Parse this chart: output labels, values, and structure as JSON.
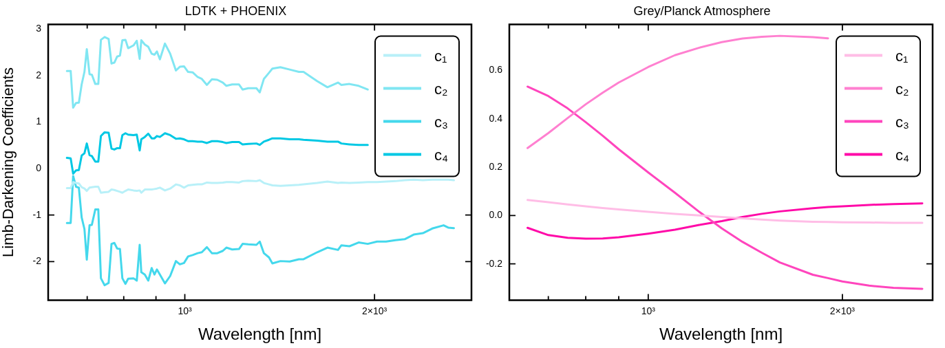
{
  "chart_data": [
    {
      "type": "line",
      "title": "LDTK + PHOENIX",
      "xlabel": "Wavelength [nm]",
      "ylabel": "Limb-Darkening Coefficients",
      "log": "x",
      "legend": "top right",
      "marker": "none",
      "line_style": "solid",
      "grid": false,
      "xlim": [
        607,
        2850
      ],
      "xticks": [
        {
          "value": 700,
          "label": null
        },
        {
          "value": 800,
          "label": null
        },
        {
          "value": 900,
          "label": null
        },
        {
          "value": 1000,
          "label": "10³"
        },
        {
          "value": 2000,
          "label": "2×10³"
        }
      ],
      "ylim": [
        -2.83,
        3.1
      ],
      "yticks": [
        {
          "value": -2,
          "label": "-2"
        },
        {
          "value": -1,
          "label": "-1"
        },
        0,
        1,
        2,
        3
      ],
      "x": [
        650,
        659,
        665,
        672,
        679,
        686,
        693,
        699,
        706,
        712,
        721,
        729,
        736,
        746,
        757,
        765,
        773,
        781,
        789,
        796,
        805,
        813,
        829,
        839,
        848,
        853,
        864,
        875,
        886,
        895,
        903,
        913,
        930,
        948,
        968,
        982,
        997,
        1012,
        1029,
        1048,
        1064,
        1084,
        1104,
        1126,
        1149,
        1164,
        1189,
        1219,
        1235,
        1261,
        1299,
        1315,
        1335,
        1360,
        1377,
        1418,
        1467,
        1517,
        1543,
        1622,
        1684,
        1750,
        1772,
        1825,
        1887,
        1951,
        2018,
        2086,
        2158,
        2233,
        2308,
        2386,
        2469,
        2574,
        2618,
        2673
      ],
      "series": [
        {
          "name": "c₁",
          "color": "#b8f0f8",
          "values": [
            -0.42,
            -0.42,
            -0.29,
            -0.31,
            -0.32,
            -0.4,
            -0.43,
            -0.48,
            -0.41,
            -0.4,
            -0.39,
            -0.39,
            -0.52,
            -0.51,
            -0.5,
            -0.45,
            -0.46,
            -0.48,
            -0.5,
            -0.52,
            -0.48,
            -0.45,
            -0.47,
            -0.48,
            -0.47,
            -0.52,
            -0.45,
            -0.45,
            -0.45,
            -0.44,
            -0.43,
            -0.41,
            -0.47,
            -0.43,
            -0.34,
            -0.36,
            -0.41,
            -0.36,
            -0.35,
            -0.34,
            -0.34,
            -0.3,
            -0.31,
            -0.31,
            -0.3,
            -0.29,
            -0.29,
            -0.3,
            -0.27,
            -0.26,
            -0.27,
            -0.25,
            -0.31,
            -0.34,
            -0.36,
            -0.37,
            -0.36,
            -0.35,
            -0.34,
            -0.31,
            -0.28,
            -0.31,
            -0.3,
            -0.31,
            -0.3,
            -0.29,
            -0.29,
            -0.28,
            -0.27,
            -0.25,
            -0.24,
            -0.25,
            -0.24,
            -0.24,
            -0.24,
            -0.25
          ]
        },
        {
          "name": "c₂",
          "color": "#80e6f2",
          "values": [
            2.1,
            2.1,
            1.31,
            1.41,
            1.42,
            1.81,
            2.08,
            2.57,
            2.03,
            2.02,
            1.82,
            1.82,
            2.77,
            2.83,
            2.79,
            2.26,
            2.28,
            2.41,
            2.43,
            2.76,
            2.77,
            2.59,
            2.65,
            2.75,
            2.36,
            2.76,
            2.67,
            2.62,
            2.47,
            2.45,
            2.52,
            2.35,
            2.69,
            2.47,
            2.11,
            2.19,
            2.2,
            2.08,
            2.07,
            1.97,
            1.93,
            1.8,
            1.92,
            1.91,
            1.85,
            1.78,
            1.81,
            1.81,
            1.7,
            1.73,
            1.73,
            1.64,
            1.93,
            2.06,
            2.15,
            2.18,
            2.13,
            2.08,
            2.08,
            1.88,
            1.75,
            1.85,
            1.8,
            1.82,
            1.78,
            1.7,
            null,
            null,
            null,
            null,
            null,
            null,
            null,
            null,
            null,
            null
          ]
        },
        {
          "name": "c₃",
          "color": "#44d8ec",
          "values": [
            -1.17,
            -1.17,
            -0.16,
            -0.39,
            -0.41,
            -1.05,
            -1.3,
            -1.96,
            -1.22,
            -1.21,
            -0.88,
            -0.88,
            -2.36,
            -2.51,
            -2.46,
            -1.62,
            -1.6,
            -1.72,
            -1.73,
            -2.36,
            -2.48,
            -2.37,
            -2.36,
            -2.41,
            -1.64,
            -2.23,
            -2.28,
            -2.41,
            -2.14,
            -2.28,
            -2.17,
            -2.28,
            -2.47,
            -2.31,
            -1.99,
            -2.06,
            -2.03,
            -1.89,
            -1.86,
            -1.82,
            -1.8,
            -1.69,
            -1.82,
            -1.82,
            -1.77,
            -1.7,
            -1.74,
            -1.73,
            -1.62,
            -1.63,
            -1.64,
            -1.57,
            -1.82,
            -1.91,
            -2.04,
            -1.99,
            -2.0,
            -1.95,
            -1.95,
            -1.8,
            -1.7,
            -1.75,
            -1.65,
            -1.67,
            -1.59,
            -1.62,
            -1.57,
            -1.57,
            -1.54,
            -1.52,
            -1.42,
            -1.39,
            -1.29,
            -1.22,
            -1.27,
            -1.28
          ]
        },
        {
          "name": "c₄",
          "color": "#00c8e4",
          "values": [
            0.23,
            0.22,
            -0.11,
            -0.04,
            -0.03,
            0.28,
            0.33,
            0.54,
            0.29,
            0.27,
            0.15,
            0.15,
            0.7,
            0.78,
            0.77,
            0.43,
            0.41,
            0.44,
            0.44,
            0.72,
            0.76,
            0.73,
            0.72,
            0.73,
            0.39,
            0.63,
            0.68,
            0.75,
            0.65,
            0.65,
            0.7,
            0.68,
            0.76,
            0.72,
            0.64,
            0.65,
            0.63,
            0.59,
            0.59,
            0.58,
            0.58,
            0.55,
            0.59,
            0.59,
            0.57,
            0.55,
            0.57,
            0.57,
            0.52,
            0.53,
            0.54,
            0.51,
            0.58,
            0.62,
            0.65,
            0.65,
            0.63,
            0.63,
            0.62,
            0.6,
            0.58,
            0.58,
            0.54,
            0.52,
            0.51,
            0.51,
            null,
            null,
            null,
            null,
            null,
            null,
            null,
            null,
            null,
            null
          ]
        }
      ]
    },
    {
      "type": "line",
      "title": "Grey/Planck Atmosphere",
      "xlabel": "Wavelength [nm]",
      "log": "x",
      "legend": "top right",
      "marker": "none",
      "line_style": "solid",
      "grid": false,
      "xlim": [
        609,
        2760
      ],
      "xticks": [
        {
          "value": 700,
          "label": null
        },
        {
          "value": 800,
          "label": null
        },
        {
          "value": 900,
          "label": null
        },
        {
          "value": 1000,
          "label": "10³"
        },
        {
          "value": 2000,
          "label": "2×10³"
        }
      ],
      "ylim": [
        -0.35,
        0.79
      ],
      "yticks": [
        {
          "value": -0.2,
          "label": "-0.2"
        },
        {
          "value": 0,
          "label": "0.0"
        },
        0.2,
        0.4,
        0.6
      ],
      "x": [
        650,
        700,
        750,
        800,
        850,
        900,
        1000,
        1100,
        1200,
        1300,
        1400,
        1500,
        1600,
        1800,
        1900,
        2000,
        2200,
        2400,
        2660
      ],
      "series": [
        {
          "name": "c₁",
          "color": "#ffbde6",
          "values": [
            0.064,
            0.055,
            0.046,
            0.038,
            0.031,
            0.025,
            0.015,
            0.007,
            0.0,
            -0.006,
            -0.012,
            -0.017,
            -0.021,
            -0.026,
            -0.027,
            -0.028,
            -0.029,
            -0.03,
            -0.03
          ]
        },
        {
          "name": "c₂",
          "color": "#ff80d0",
          "values": [
            0.279,
            0.341,
            0.403,
            0.46,
            0.508,
            0.55,
            0.614,
            0.663,
            0.694,
            0.717,
            0.732,
            0.739,
            0.743,
            0.738,
            0.733,
            null,
            null,
            null,
            null
          ]
        },
        {
          "name": "c₃",
          "color": "#ff45bd",
          "values": [
            0.533,
            0.494,
            0.443,
            0.386,
            0.33,
            0.274,
            0.178,
            0.094,
            0.015,
            -0.053,
            -0.109,
            -0.154,
            -0.194,
            -0.245,
            -0.259,
            -0.273,
            -0.29,
            -0.299,
            -0.303
          ]
        },
        {
          "name": "c₄",
          "color": "#ff0aa8",
          "values": [
            -0.051,
            -0.081,
            -0.092,
            -0.096,
            -0.095,
            -0.09,
            -0.075,
            -0.059,
            -0.039,
            -0.023,
            -0.006,
            0.007,
            0.017,
            0.03,
            0.035,
            0.038,
            0.044,
            0.047,
            0.05
          ]
        }
      ]
    }
  ]
}
